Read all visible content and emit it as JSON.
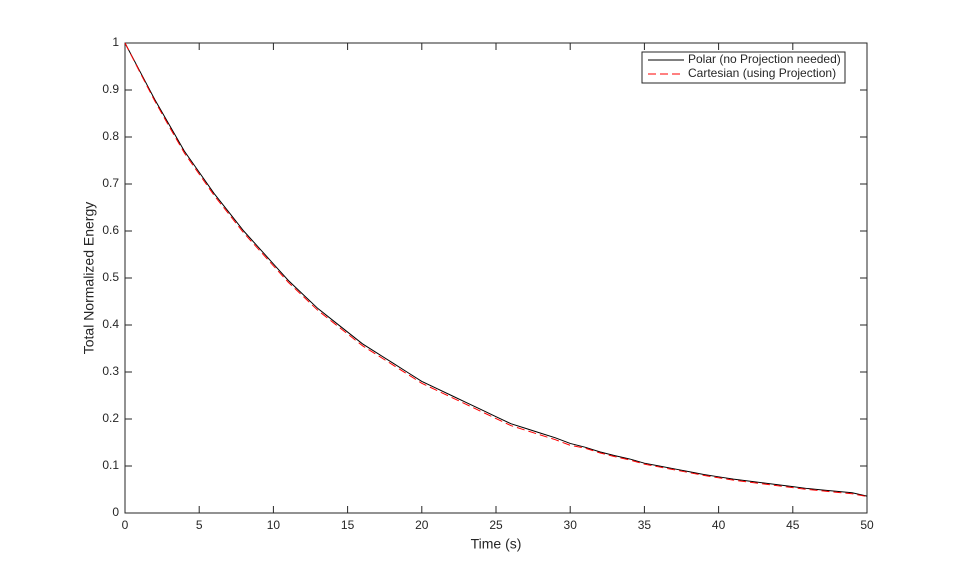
{
  "chart_data": {
    "type": "line",
    "xlabel": "Time (s)",
    "ylabel": "Total Normalized Energy",
    "x": [
      0,
      1,
      2,
      3,
      4,
      5,
      6,
      7,
      8,
      9,
      10,
      11,
      12,
      13,
      14,
      15,
      16,
      17,
      18,
      19,
      20,
      21,
      22,
      23,
      24,
      25,
      26,
      27,
      28,
      29,
      30,
      31,
      32,
      33,
      34,
      35,
      36,
      37,
      38,
      39,
      40,
      41,
      42,
      43,
      44,
      45,
      46,
      47,
      48,
      49,
      50
    ],
    "series": [
      {
        "name": "Polar (no Projection needed)",
        "color": "#000000",
        "line_style": "solid",
        "values": [
          1.0,
          0.94,
          0.88,
          0.825,
          0.77,
          0.725,
          0.68,
          0.64,
          0.6,
          0.565,
          0.53,
          0.495,
          0.465,
          0.435,
          0.41,
          0.385,
          0.36,
          0.34,
          0.32,
          0.3,
          0.28,
          0.265,
          0.25,
          0.235,
          0.22,
          0.205,
          0.19,
          0.18,
          0.17,
          0.16,
          0.148,
          0.14,
          0.13,
          0.122,
          0.115,
          0.106,
          0.1,
          0.094,
          0.088,
          0.082,
          0.077,
          0.072,
          0.068,
          0.064,
          0.06,
          0.056,
          0.052,
          0.049,
          0.046,
          0.043,
          0.036
        ]
      },
      {
        "name": "Cartesian (using Projection)",
        "color": "#ff0000",
        "line_style": "dashed",
        "values": [
          1.0,
          0.938,
          0.877,
          0.821,
          0.766,
          0.721,
          0.676,
          0.636,
          0.596,
          0.561,
          0.526,
          0.491,
          0.461,
          0.431,
          0.406,
          0.381,
          0.356,
          0.336,
          0.316,
          0.296,
          0.276,
          0.261,
          0.246,
          0.231,
          0.216,
          0.201,
          0.186,
          0.176,
          0.166,
          0.156,
          0.144,
          0.138,
          0.128,
          0.12,
          0.113,
          0.104,
          0.098,
          0.092,
          0.086,
          0.08,
          0.075,
          0.07,
          0.066,
          0.062,
          0.058,
          0.054,
          0.05,
          0.047,
          0.044,
          0.041,
          0.035
        ]
      }
    ],
    "xlim": [
      0,
      50
    ],
    "xticks": [
      0,
      5,
      10,
      15,
      20,
      25,
      30,
      35,
      40,
      45,
      50
    ],
    "ylim": [
      0,
      1
    ],
    "yticks": [
      0,
      0.1,
      0.2,
      0.3,
      0.4,
      0.5,
      0.6,
      0.7,
      0.8,
      0.9,
      1
    ],
    "grid": false,
    "legend": "top-right"
  }
}
